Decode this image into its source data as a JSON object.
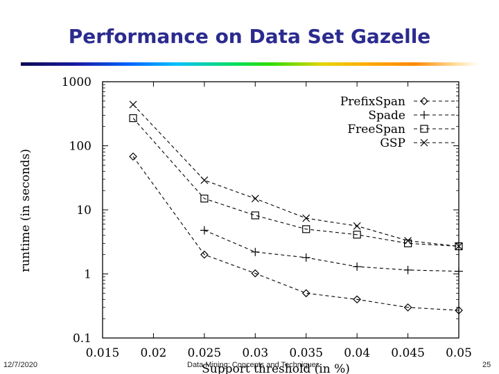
{
  "slide": {
    "title": "Performance on Data Set Gazelle",
    "footer_date": "12/7/2020",
    "footer_center": "Data Mining: Concepts and Techniques",
    "page_number": "25"
  },
  "chart_data": {
    "type": "line",
    "title": "",
    "xlabel": "Support threshold (in %)",
    "ylabel": "runtime (in seconds)",
    "xlim": [
      0.015,
      0.05
    ],
    "ylim": [
      0.1,
      1000
    ],
    "yscale": "log",
    "x_ticks": [
      "0.015",
      "0.02",
      "0.025",
      "0.03",
      "0.035",
      "0.04",
      "0.045",
      "0.05"
    ],
    "y_ticks": [
      "0.1",
      "1",
      "10",
      "100",
      "1000"
    ],
    "legend_position": "top-right",
    "series": [
      {
        "name": "PrefixSpan",
        "marker": "diamond",
        "x": [
          0.018,
          0.025,
          0.03,
          0.035,
          0.04,
          0.045,
          0.05
        ],
        "y": [
          68,
          2.0,
          1.02,
          0.5,
          0.4,
          0.3,
          0.27
        ]
      },
      {
        "name": "Spade",
        "marker": "plus",
        "x": [
          0.025,
          0.03,
          0.035,
          0.04,
          0.045,
          0.05
        ],
        "y": [
          4.8,
          2.2,
          1.8,
          1.3,
          1.15,
          1.1
        ]
      },
      {
        "name": "FreeSpan",
        "marker": "square",
        "x": [
          0.018,
          0.025,
          0.03,
          0.035,
          0.04,
          0.045,
          0.05
        ],
        "y": [
          270,
          15,
          8.2,
          5.0,
          4.1,
          3.0,
          2.7
        ]
      },
      {
        "name": "GSP",
        "marker": "x",
        "x": [
          0.018,
          0.025,
          0.03,
          0.035,
          0.04,
          0.045,
          0.05
        ],
        "y": [
          440,
          29,
          15,
          7.4,
          5.6,
          3.3,
          2.7
        ]
      }
    ]
  }
}
